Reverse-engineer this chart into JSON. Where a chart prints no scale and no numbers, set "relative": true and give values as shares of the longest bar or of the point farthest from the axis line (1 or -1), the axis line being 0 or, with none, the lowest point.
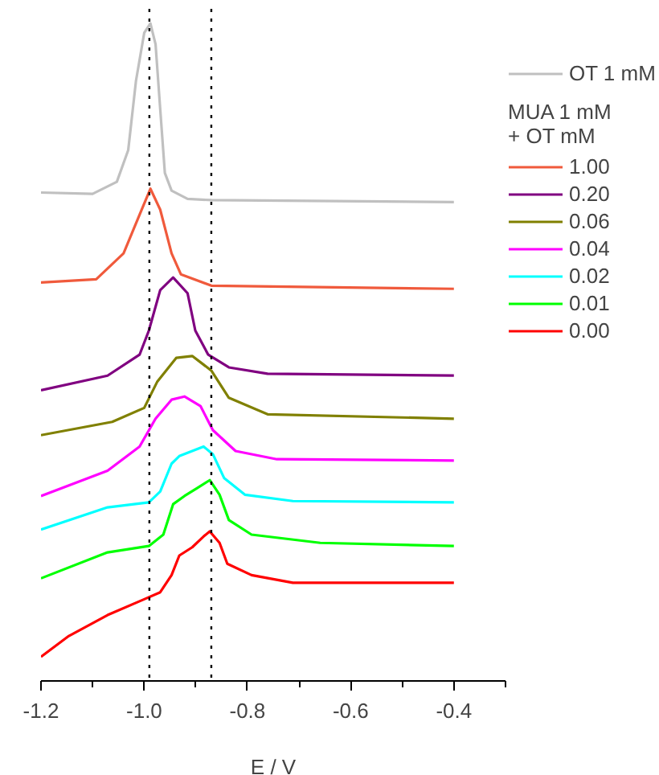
{
  "chart_data": {
    "type": "line",
    "relative": true,
    "xlabel": "E / V",
    "legend_title": "MUA 1 mM\n+ OT mM",
    "legend": "top right",
    "grid": false,
    "line_style": "solid",
    "xlim": [
      -1.2,
      -0.3
    ],
    "xticks": [
      -1.2,
      {
        "value": -1.0,
        "label": "-1.0"
      },
      -0.8,
      -0.6,
      -0.4
    ],
    "ref_lines": [
      {
        "axis": "x",
        "value": -0.99,
        "label": null,
        "color": "#000000",
        "line_style": "dotted"
      },
      {
        "axis": "x",
        "value": -0.87,
        "label": null,
        "color": "#000000",
        "line_style": "dotted"
      }
    ],
    "series": [
      {
        "name": "OT 1 mM",
        "color": "#c0c0c0",
        "x": [
          -1.2,
          -1.1,
          -1.053,
          -1.031,
          -1.016,
          -1.0,
          -0.988,
          -0.978,
          -0.969,
          -0.96,
          -0.947,
          -0.916,
          -0.87,
          -0.4
        ],
        "values": [
          0.733,
          0.731,
          0.75,
          0.8,
          0.909,
          0.985,
          1.0,
          0.967,
          0.865,
          0.764,
          0.736,
          0.723,
          0.721,
          0.718
        ]
      },
      {
        "name": "1.00",
        "color": "#f05a3c",
        "x": [
          -1.2,
          -1.093,
          -1.04,
          -1.009,
          -0.988,
          -0.969,
          -0.947,
          -0.929,
          -0.87,
          -0.4
        ],
        "values": [
          0.591,
          0.596,
          0.637,
          0.698,
          0.739,
          0.706,
          0.637,
          0.604,
          0.586,
          0.581
        ]
      },
      {
        "name": "0.20",
        "color": "#800080",
        "x": [
          -1.2,
          -1.071,
          -1.009,
          -0.991,
          -0.969,
          -0.944,
          -0.916,
          -0.901,
          -0.876,
          -0.836,
          -0.761,
          -0.4
        ],
        "values": [
          0.421,
          0.444,
          0.477,
          0.515,
          0.579,
          0.599,
          0.574,
          0.515,
          0.477,
          0.457,
          0.447,
          0.444
        ]
      },
      {
        "name": "0.06",
        "color": "#808000",
        "x": [
          -1.2,
          -1.062,
          -1.0,
          -0.975,
          -0.938,
          -0.907,
          -0.87,
          -0.836,
          -0.761,
          -0.4
        ],
        "values": [
          0.35,
          0.371,
          0.393,
          0.434,
          0.472,
          0.475,
          0.452,
          0.409,
          0.383,
          0.376
        ]
      },
      {
        "name": "0.04",
        "color": "#ff00ff",
        "x": [
          -1.2,
          -1.071,
          -1.009,
          -0.978,
          -0.947,
          -0.922,
          -0.891,
          -0.867,
          -0.823,
          -0.743,
          -0.4
        ],
        "values": [
          0.254,
          0.294,
          0.332,
          0.376,
          0.406,
          0.411,
          0.396,
          0.358,
          0.325,
          0.312,
          0.31
        ]
      },
      {
        "name": "0.02",
        "color": "#00ffff",
        "x": [
          -1.2,
          -1.071,
          -0.991,
          -0.969,
          -0.947,
          -0.932,
          -0.907,
          -0.885,
          -0.867,
          -0.845,
          -0.805,
          -0.712,
          -0.4
        ],
        "values": [
          0.201,
          0.236,
          0.244,
          0.261,
          0.305,
          0.317,
          0.325,
          0.332,
          0.32,
          0.282,
          0.256,
          0.246,
          0.244
        ]
      },
      {
        "name": "0.01",
        "color": "#00ff00",
        "x": [
          -1.2,
          -1.071,
          -0.991,
          -0.963,
          -0.944,
          -0.922,
          -0.898,
          -0.873,
          -0.854,
          -0.836,
          -0.792,
          -0.659,
          -0.4
        ],
        "values": [
          0.124,
          0.165,
          0.175,
          0.193,
          0.241,
          0.254,
          0.266,
          0.279,
          0.256,
          0.216,
          0.193,
          0.18,
          0.175
        ]
      },
      {
        "name": "0.00",
        "color": "#ff0000",
        "x": [
          -1.2,
          -1.146,
          -1.071,
          -1.0,
          -0.969,
          -0.947,
          -0.932,
          -0.907,
          -0.885,
          -0.873,
          -0.854,
          -0.839,
          -0.792,
          -0.712,
          -0.606,
          -0.4
        ],
        "values": [
          0.0,
          0.033,
          0.066,
          0.091,
          0.102,
          0.129,
          0.16,
          0.173,
          0.19,
          0.198,
          0.18,
          0.147,
          0.129,
          0.117,
          0.117,
          0.117
        ]
      }
    ]
  }
}
